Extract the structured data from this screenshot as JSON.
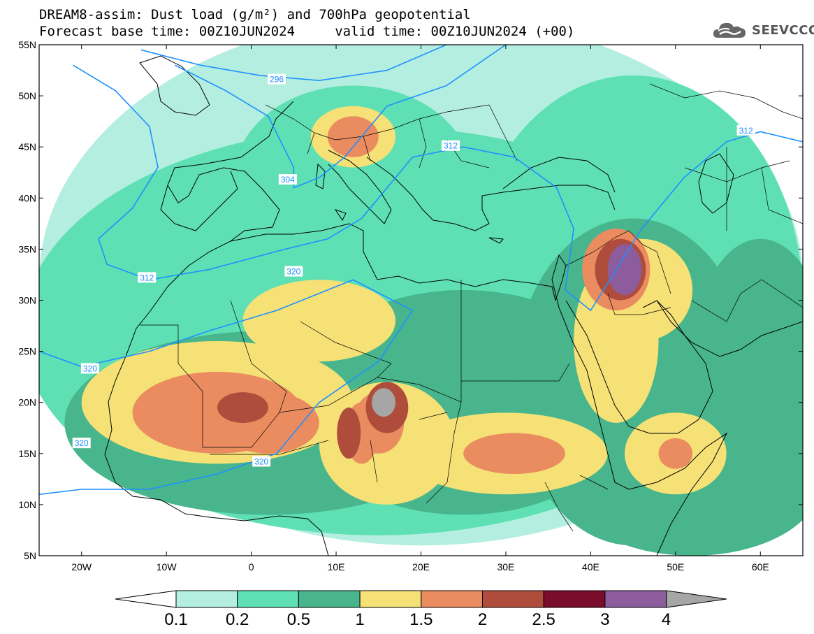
{
  "title": {
    "line1": "DREAM8-assim: Dust load (g/m²) and 700hPa geopotential",
    "line2": "Forecast base time: 00Z10JUN2024     valid time: 00Z10JUN2024 (+00)"
  },
  "logo": {
    "text": "SEEVCCC",
    "icon": "cloud-logo-icon"
  },
  "axes": {
    "lat_ticks": [
      "55N",
      "50N",
      "45N",
      "40N",
      "35N",
      "30N",
      "25N",
      "20N",
      "15N",
      "10N",
      "5N"
    ],
    "lat_values": [
      55,
      50,
      45,
      40,
      35,
      30,
      25,
      20,
      15,
      10,
      5
    ],
    "lon_ticks": [
      "20W",
      "10W",
      "0",
      "10E",
      "20E",
      "30E",
      "40E",
      "50E",
      "60E"
    ],
    "lon_values": [
      -20,
      -10,
      0,
      10,
      20,
      30,
      40,
      50,
      60
    ],
    "lon_range": [
      -25,
      65
    ],
    "lat_range": [
      5,
      55
    ]
  },
  "colorbar": {
    "levels": [
      "0.1",
      "0.2",
      "0.5",
      "1",
      "1.5",
      "2",
      "2.5",
      "3",
      "4"
    ],
    "colors": [
      "#b4eee0",
      "#5ee0b4",
      "#48b58c",
      "#f5e176",
      "#ea8c60",
      "#b04c3c",
      "#7a0c2c",
      "#8c5c9c",
      "#a6a6a6"
    ]
  },
  "geopotential_labels": [
    {
      "text": "296",
      "lon": 3,
      "lat": 51.6
    },
    {
      "text": "304",
      "lon": 4.3,
      "lat": 41.8
    },
    {
      "text": "312",
      "lon": -12.3,
      "lat": 32.2
    },
    {
      "text": "312",
      "lon": 23.5,
      "lat": 45.1
    },
    {
      "text": "312",
      "lon": 58.3,
      "lat": 46.6
    },
    {
      "text": "320",
      "lon": 5,
      "lat": 32.8
    },
    {
      "text": "320",
      "lon": -19,
      "lat": 23.3
    },
    {
      "text": "320",
      "lon": -20,
      "lat": 16
    },
    {
      "text": "320",
      "lon": 1.2,
      "lat": 14.2
    }
  ],
  "dust_fields": [
    {
      "lon": 20,
      "lat": 32,
      "rx": 45,
      "ry": 26,
      "level": 0
    },
    {
      "lon": 15,
      "lat": 27,
      "rx": 42,
      "ry": 20,
      "level": 1
    },
    {
      "lon": 45,
      "lat": 30,
      "rx": 20,
      "ry": 22,
      "level": 1
    },
    {
      "lon": 12,
      "lat": 42,
      "rx": 14,
      "ry": 9,
      "level": 1
    },
    {
      "lon": 2,
      "lat": 18,
      "rx": 24,
      "ry": 9,
      "level": 2
    },
    {
      "lon": 25,
      "lat": 20,
      "rx": 20,
      "ry": 11,
      "level": 2
    },
    {
      "lon": 45,
      "lat": 22,
      "rx": 14,
      "ry": 16,
      "level": 2
    },
    {
      "lon": 52,
      "lat": 12,
      "rx": 15,
      "ry": 7,
      "level": 2
    },
    {
      "lon": 60,
      "lat": 24,
      "rx": 8,
      "ry": 12,
      "level": 2
    },
    {
      "lon": -4,
      "lat": 20,
      "rx": 16,
      "ry": 6,
      "level": 3
    },
    {
      "lon": 8,
      "lat": 28,
      "rx": 9,
      "ry": 4,
      "level": 3
    },
    {
      "lon": 16,
      "lat": 16,
      "rx": 8,
      "ry": 6,
      "level": 3
    },
    {
      "lon": 30,
      "lat": 15,
      "rx": 12,
      "ry": 4,
      "level": 3
    },
    {
      "lon": 43,
      "lat": 26,
      "rx": 5,
      "ry": 8,
      "level": 3
    },
    {
      "lon": 12,
      "lat": 46,
      "rx": 5,
      "ry": 3,
      "level": 3
    },
    {
      "lon": 46,
      "lat": 31,
      "rx": 6,
      "ry": 5,
      "level": 3
    },
    {
      "lon": 50,
      "lat": 15,
      "rx": 6,
      "ry": 4,
      "level": 3
    },
    {
      "lon": -4,
      "lat": 19,
      "rx": 10,
      "ry": 4,
      "level": 4
    },
    {
      "lon": 2,
      "lat": 18,
      "rx": 6,
      "ry": 3,
      "level": 4
    },
    {
      "lon": 15,
      "lat": 18,
      "rx": 3,
      "ry": 3,
      "level": 4
    },
    {
      "lon": 13,
      "lat": 17,
      "rx": 2,
      "ry": 3,
      "level": 4
    },
    {
      "lon": 31,
      "lat": 15,
      "rx": 6,
      "ry": 2,
      "level": 4
    },
    {
      "lon": 43,
      "lat": 33,
      "rx": 4,
      "ry": 4,
      "level": 4
    },
    {
      "lon": 12,
      "lat": 46,
      "rx": 3,
      "ry": 2,
      "level": 4
    },
    {
      "lon": 50,
      "lat": 15,
      "rx": 2,
      "ry": 1.5,
      "level": 4
    },
    {
      "lon": -1,
      "lat": 19.5,
      "rx": 3,
      "ry": 1.5,
      "level": 5
    },
    {
      "lon": 16,
      "lat": 19.5,
      "rx": 2.5,
      "ry": 2.5,
      "level": 5
    },
    {
      "lon": 11.5,
      "lat": 17,
      "rx": 1.4,
      "ry": 2.5,
      "level": 5
    },
    {
      "lon": 43.5,
      "lat": 33,
      "rx": 3,
      "ry": 3,
      "level": 5
    },
    {
      "lon": 44,
      "lat": 33,
      "rx": 2,
      "ry": 2.5,
      "level": 7
    },
    {
      "lon": 15.6,
      "lat": 20,
      "rx": 1.4,
      "ry": 1.4,
      "level": 8
    }
  ],
  "geopotential_lines": [
    [
      [
        -21,
        53
      ],
      [
        -16,
        50.5
      ],
      [
        -12,
        47
      ],
      [
        -11,
        43
      ],
      [
        -14,
        39
      ],
      [
        -18,
        36
      ],
      [
        -17,
        33.5
      ],
      [
        -12,
        32
      ],
      [
        -5,
        33
      ],
      [
        4,
        35
      ],
      [
        9,
        36
      ],
      [
        13,
        38
      ],
      [
        19,
        44
      ],
      [
        25,
        45
      ],
      [
        31,
        44
      ],
      [
        36,
        41
      ],
      [
        38,
        37
      ],
      [
        37,
        31
      ],
      [
        40,
        29
      ],
      [
        46,
        37
      ],
      [
        51,
        42
      ],
      [
        56,
        45.5
      ],
      [
        60,
        46.5
      ],
      [
        65,
        45.5
      ]
    ],
    [
      [
        -25,
        25
      ],
      [
        -20,
        23.5
      ],
      [
        -12,
        25
      ],
      [
        -5,
        27
      ],
      [
        3,
        29
      ],
      [
        12,
        32
      ],
      [
        19,
        29
      ],
      [
        15,
        24
      ],
      [
        8,
        20
      ],
      [
        3,
        15
      ],
      [
        -4,
        13
      ],
      [
        -12,
        11.5
      ],
      [
        -20,
        11.5
      ],
      [
        -25,
        11
      ]
    ],
    [
      [
        -9,
        53
      ],
      [
        -3,
        50.5
      ],
      [
        2,
        48
      ],
      [
        5,
        43
      ],
      [
        5,
        41
      ],
      [
        8,
        42
      ],
      [
        11,
        44
      ],
      [
        14,
        47
      ],
      [
        16,
        49
      ],
      [
        23,
        51
      ],
      [
        30,
        55
      ]
    ],
    [
      [
        -13,
        54.5
      ],
      [
        -6,
        53
      ],
      [
        1,
        52
      ],
      [
        8,
        51.5
      ],
      [
        16,
        52.5
      ],
      [
        23,
        55
      ]
    ]
  ]
}
